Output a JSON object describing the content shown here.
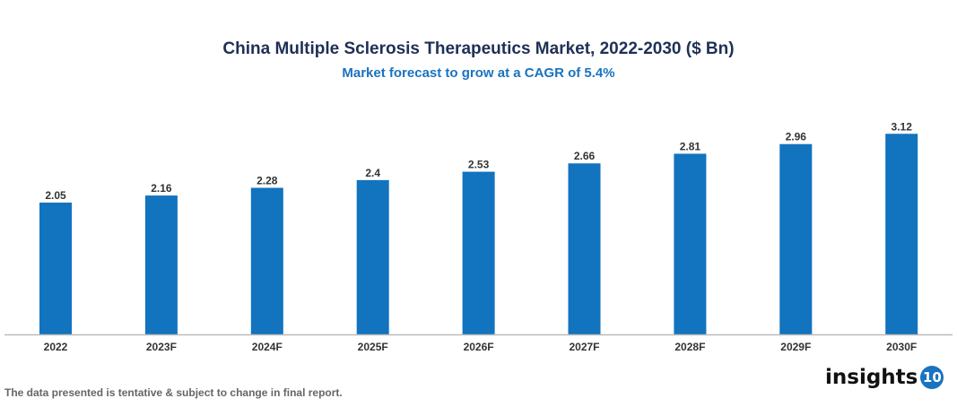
{
  "chart_data": {
    "type": "bar",
    "title": "China Multiple Sclerosis Therapeutics Market, 2022-2030 ($ Bn)",
    "subtitle": "Market forecast to grow at a CAGR of 5.4%",
    "categories": [
      "2022",
      "2023F",
      "2024F",
      "2025F",
      "2026F",
      "2027F",
      "2028F",
      "2029F",
      "2030F"
    ],
    "values": [
      2.05,
      2.16,
      2.28,
      2.4,
      2.53,
      2.66,
      2.81,
      2.96,
      3.12
    ],
    "data_labels": [
      "2.05",
      "2.16",
      "2.28",
      "2.4",
      "2.53",
      "2.66",
      "2.81",
      "2.96",
      "3.12"
    ],
    "xlabel": "",
    "ylabel": "",
    "ylim": [
      0,
      3.5
    ],
    "grid": false,
    "bar_color": "#1273bf"
  },
  "footer": {
    "note": "The data presented is tentative & subject to change in final report."
  },
  "logo": {
    "text": "insights",
    "badge": "10"
  }
}
